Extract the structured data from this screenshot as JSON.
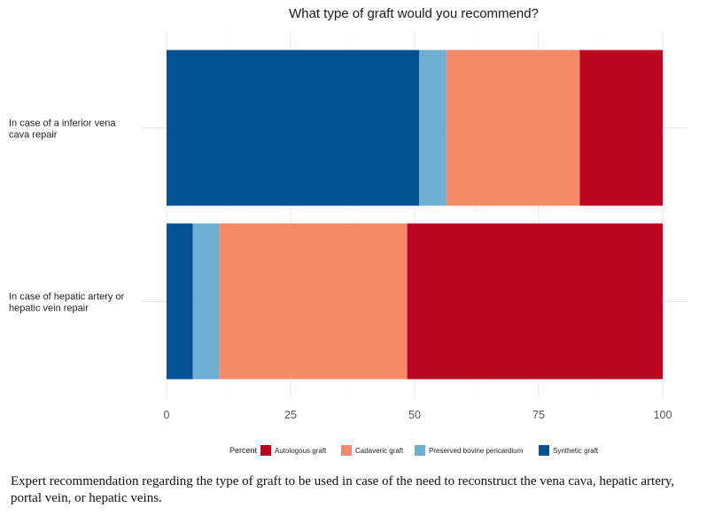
{
  "chart_data": {
    "type": "bar",
    "orientation": "horizontal",
    "stacked": true,
    "title": "What type of graft would you recommend?",
    "xlabel": "",
    "ylabel": "",
    "xlim": [
      0,
      100
    ],
    "xticks": [
      0,
      25,
      50,
      75,
      100
    ],
    "grid": true,
    "categories": [
      [
        "In case of a inferior vena",
        "cava repair"
      ],
      [
        "In case of hepatic artery or",
        "hepatic vein repair"
      ]
    ],
    "stack_order": [
      "Synthetic graft",
      "Preserved bovine pericardium",
      "Cadaveric graft",
      "Autologous graft"
    ],
    "series": [
      {
        "name": "Autologous graft",
        "color": "#bb0621",
        "values": [
          16.7,
          51.5
        ]
      },
      {
        "name": "Cadaveric graft",
        "color": "#f58a69",
        "values": [
          26.9,
          37.9
        ]
      },
      {
        "name": "Preserved bovine pericardium",
        "color": "#6daed1",
        "values": [
          5.5,
          5.3
        ]
      },
      {
        "name": "Synthetic graft",
        "color": "#035293",
        "values": [
          50.9,
          5.3
        ]
      }
    ],
    "legend": {
      "title": "Percent",
      "position": "bottom",
      "items": [
        "Autologous graft",
        "Cadaveric graft",
        "Preserved bovine pericardium",
        "Synthetic graft"
      ]
    }
  },
  "caption": "Expert recommendation regarding the type of graft to be used in case of the need to reconstruct the vena cava, hepatic artery, portal vein, or hepatic veins."
}
